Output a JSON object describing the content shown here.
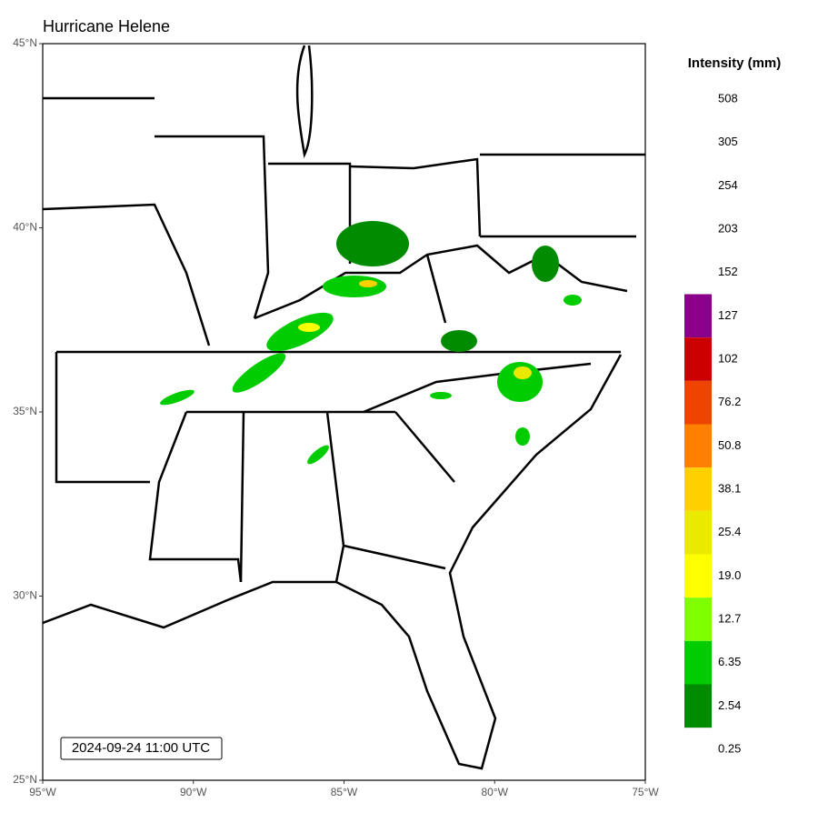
{
  "chart_data": {
    "type": "map",
    "title": "Hurricane Helene",
    "annotation": "2024-09-24 11:00 UTC",
    "xlim": [
      -95,
      -75
    ],
    "ylim": [
      25,
      45
    ],
    "xticks": [
      {
        "value": -95,
        "label": "95°W"
      },
      {
        "value": -90,
        "label": "90°W"
      },
      {
        "value": -85,
        "label": "85°W"
      },
      {
        "value": -80,
        "label": "80°W"
      },
      {
        "value": -75,
        "label": "75°W"
      }
    ],
    "yticks": [
      {
        "value": 25,
        "label": "25°N"
      },
      {
        "value": 30,
        "label": "30°N"
      },
      {
        "value": 35,
        "label": "35°N"
      },
      {
        "value": 40,
        "label": "40°N"
      },
      {
        "value": 45,
        "label": "45°N"
      }
    ],
    "legend": {
      "title": "Intensity (mm)",
      "levels": [
        {
          "value": 508
        },
        {
          "value": 305
        },
        {
          "value": 254
        },
        {
          "value": 203
        },
        {
          "value": 152
        },
        {
          "value": 127,
          "color": "#8b008b"
        },
        {
          "value": 102,
          "color": "#cc0000"
        },
        {
          "value": 76.2,
          "color": "#ee4400"
        },
        {
          "value": 50.8,
          "color": "#ff7f00"
        },
        {
          "value": 38.1,
          "color": "#ffd000"
        },
        {
          "value": 25.4,
          "color": "#eaea00"
        },
        {
          "value": 19,
          "label": "19.0",
          "color": "#ffff00"
        },
        {
          "value": 12.7,
          "color": "#7fff00"
        },
        {
          "value": 6.35,
          "color": "#00cc00"
        },
        {
          "value": 2.54,
          "color": "#008b00"
        },
        {
          "value": 0.25
        }
      ]
    }
  }
}
